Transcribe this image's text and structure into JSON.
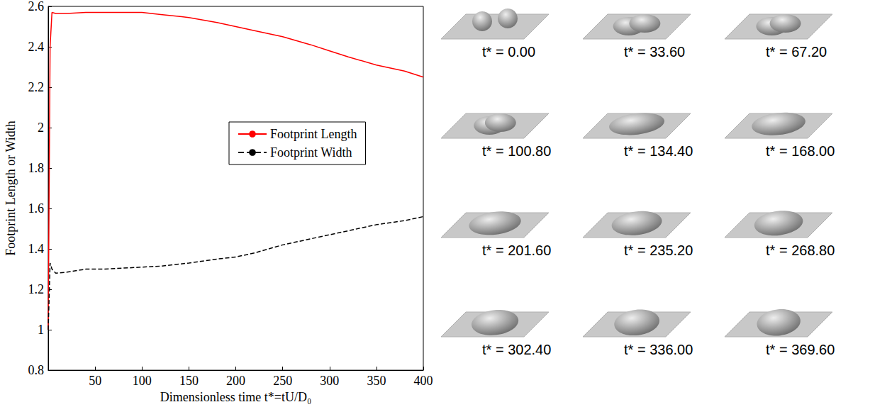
{
  "chart_data": {
    "type": "line",
    "x_label": "Dimensionless time t*=tU/D₀",
    "y_label": "Footprint Length or Width",
    "x": [
      0,
      2,
      4,
      8,
      20,
      40,
      60,
      80,
      100,
      120,
      150,
      180,
      200,
      220,
      250,
      280,
      300,
      320,
      350,
      380,
      400
    ],
    "series": [
      {
        "name": "Footprint Length",
        "color": "#ff0000",
        "line_style": "solid",
        "values": [
          1.0,
          2.4,
          2.57,
          2.565,
          2.565,
          2.57,
          2.57,
          2.57,
          2.57,
          2.56,
          2.545,
          2.52,
          2.5,
          2.48,
          2.45,
          2.41,
          2.38,
          2.35,
          2.31,
          2.28,
          2.25
        ]
      },
      {
        "name": "Footprint Width",
        "color": "#000000",
        "line_style": "dashed",
        "values": [
          1.0,
          1.33,
          1.3,
          1.28,
          1.285,
          1.3,
          1.3,
          1.305,
          1.31,
          1.315,
          1.33,
          1.35,
          1.36,
          1.38,
          1.42,
          1.45,
          1.47,
          1.49,
          1.52,
          1.54,
          1.56
        ]
      }
    ],
    "xlim": [
      0,
      400
    ],
    "xticks": [
      50,
      100,
      150,
      200,
      250,
      300,
      350,
      400
    ],
    "ylim": [
      0.8,
      2.6
    ],
    "yticks": [
      0.8,
      1,
      1.2,
      1.4,
      1.6,
      1.8,
      2,
      2.2,
      2.4,
      2.6
    ],
    "grid": false,
    "legend": "right"
  },
  "snapshots": [
    "t* = 0.00",
    "t* = 33.60",
    "t* = 67.20",
    "t* = 100.80",
    "t* = 134.40",
    "t* = 168.00",
    "t* = 201.60",
    "t* = 235.20",
    "t* = 268.80",
    "t* = 302.40",
    "t* = 336.00",
    "t* = 369.60"
  ]
}
